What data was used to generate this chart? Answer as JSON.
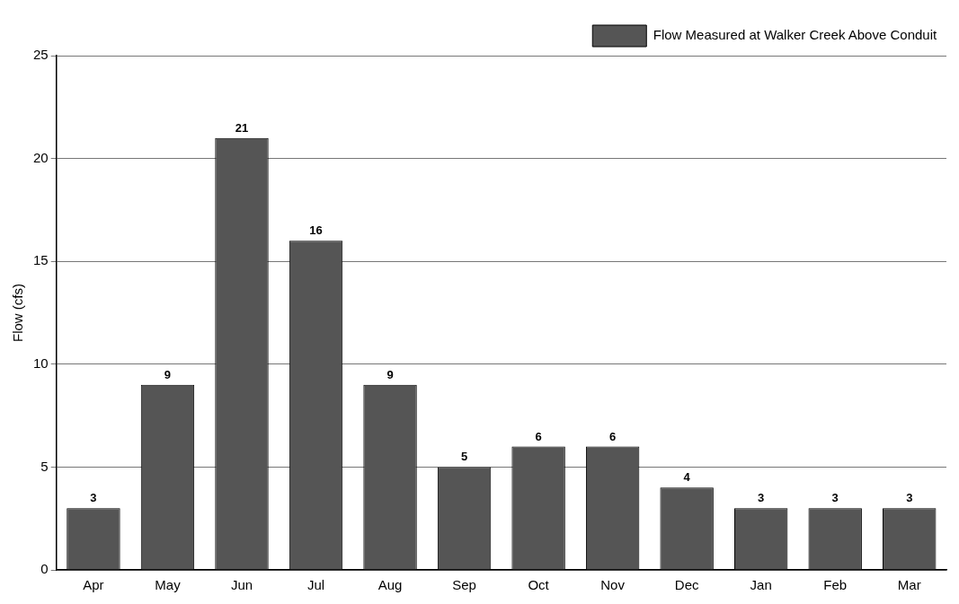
{
  "chart_data": {
    "type": "bar",
    "ylabel": "Flow (cfs)",
    "categories": [
      "Apr",
      "May",
      "Jun",
      "Jul",
      "Aug",
      "Sep",
      "Oct",
      "Nov",
      "Dec",
      "Jan",
      "Feb",
      "Mar"
    ],
    "series": [
      {
        "name": "Flow Measured at Walker Creek Above Conduit",
        "color": "#555555",
        "values": [
          3,
          9,
          21,
          16,
          9,
          5,
          6,
          6,
          4,
          3,
          3,
          3
        ]
      }
    ],
    "ylim": [
      0,
      25
    ],
    "yticks": [
      0,
      5,
      10,
      15,
      20,
      25
    ],
    "grid": "y",
    "legend": "top right",
    "data_labels": true
  }
}
